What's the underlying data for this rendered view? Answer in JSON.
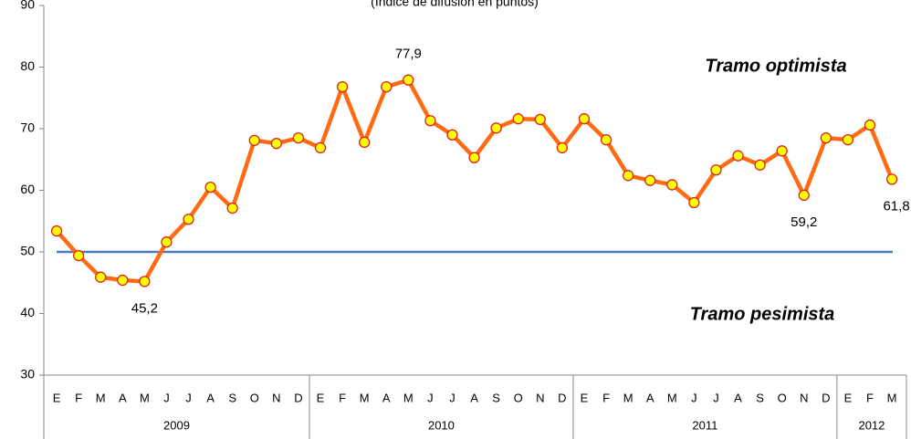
{
  "chart_data": {
    "type": "line",
    "subtitle": "(Índice de difusión en puntos)",
    "categories": [
      "E",
      "F",
      "M",
      "A",
      "M",
      "J",
      "J",
      "A",
      "S",
      "O",
      "N",
      "D",
      "E",
      "F",
      "M",
      "A",
      "M",
      "J",
      "J",
      "A",
      "S",
      "O",
      "N",
      "D",
      "E",
      "F",
      "M",
      "A",
      "M",
      "J",
      "J",
      "A",
      "S",
      "O",
      "N",
      "D",
      "E",
      "F",
      "M"
    ],
    "x_groups": [
      {
        "label": "2009",
        "span": 12
      },
      {
        "label": "2010",
        "span": 12
      },
      {
        "label": "2011",
        "span": 12
      },
      {
        "label": "2012",
        "span": 3
      }
    ],
    "series": [
      {
        "name": "Índice",
        "color": "#ff6a13",
        "marker_fill": "#ffff00",
        "marker_stroke": "#e0201b",
        "values": [
          53.4,
          49.4,
          45.9,
          45.4,
          45.2,
          51.6,
          55.3,
          60.5,
          57.1,
          68.1,
          67.6,
          68.5,
          66.9,
          76.8,
          67.8,
          76.8,
          77.9,
          71.3,
          69.0,
          65.3,
          70.1,
          71.6,
          71.5,
          66.9,
          71.6,
          68.2,
          62.4,
          61.6,
          60.9,
          58.0,
          63.3,
          65.6,
          64.1,
          66.4,
          59.2,
          68.5,
          68.2,
          70.6,
          61.8
        ],
        "value_labels": [
          null,
          null,
          null,
          null,
          "45,2",
          null,
          null,
          null,
          null,
          null,
          null,
          null,
          null,
          null,
          null,
          null,
          "77,9",
          null,
          null,
          null,
          null,
          null,
          null,
          null,
          null,
          null,
          null,
          null,
          null,
          null,
          null,
          null,
          null,
          null,
          "59,2",
          null,
          null,
          null,
          "61,8"
        ]
      }
    ],
    "reference_line": {
      "value": 50,
      "color": "#4a7ebb"
    },
    "annotations": [
      {
        "text": "Tramo optimista",
        "color": "#333399"
      },
      {
        "text": "Tramo pesimista",
        "color": "#ff0000"
      }
    ],
    "ylim": [
      30,
      90
    ],
    "yticks": [
      30,
      40,
      50,
      60,
      70,
      80,
      90
    ],
    "grid": false
  }
}
